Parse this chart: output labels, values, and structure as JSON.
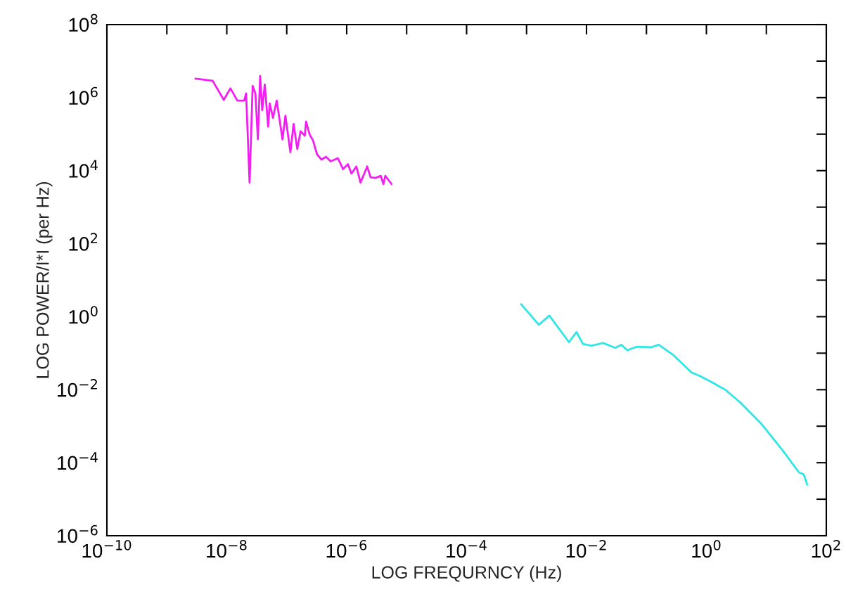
{
  "chart_data": {
    "type": "line",
    "xlabel": "LOG FREQURNCY (Hz)",
    "ylabel": "LOG POWER/I*I (per Hz)",
    "log": "xy",
    "grid": false,
    "legend": false,
    "marker": "none",
    "line_style": "solid",
    "xlim": [
      1e-10,
      100
    ],
    "ylim": [
      1e-06,
      100000000.0
    ],
    "xticks": [
      {
        "value": 1e-10,
        "label": "10$^{−10}$"
      },
      {
        "value": 1e-09,
        "label": null
      },
      {
        "value": 1e-08,
        "label": "10$^{−8}$"
      },
      {
        "value": 1e-07,
        "label": null
      },
      {
        "value": 1e-06,
        "label": "10$^{−6}$"
      },
      {
        "value": 1e-05,
        "label": null
      },
      {
        "value": 0.0001,
        "label": "10$^{−4}$"
      },
      {
        "value": 0.001,
        "label": null
      },
      {
        "value": 0.01,
        "label": "10$^{−2}$"
      },
      {
        "value": 0.1,
        "label": null
      },
      {
        "value": 1,
        "label": "10$^{0}$"
      },
      {
        "value": 10,
        "label": null
      },
      {
        "value": 100,
        "label": "10$^{2}$"
      }
    ],
    "yticks": [
      {
        "value": 1e-06,
        "label": "10$^{−6}$"
      },
      {
        "value": 1e-05,
        "label": null
      },
      {
        "value": 0.0001,
        "label": "10$^{−4}$"
      },
      {
        "value": 0.001,
        "label": null
      },
      {
        "value": 0.01,
        "label": "10$^{−2}$"
      },
      {
        "value": 0.1,
        "label": null
      },
      {
        "value": 1,
        "label": "10$^{0}$"
      },
      {
        "value": 10,
        "label": null
      },
      {
        "value": 100,
        "label": "10$^{2}$"
      },
      {
        "value": 1000,
        "label": null
      },
      {
        "value": 10000.0,
        "label": "10$^{4}$"
      },
      {
        "value": 100000.0,
        "label": null
      },
      {
        "value": 1000000.0,
        "label": "10$^{6}$"
      },
      {
        "value": 10000000.0,
        "label": null
      },
      {
        "value": 100000000.0,
        "label": "10$^{8}$"
      }
    ],
    "series": [
      {
        "color": "#f21ef2",
        "x": [
          3e-09,
          5.8e-09,
          8.9e-09,
          1.15e-08,
          1.5e-08,
          1.95e-08,
          2.1e-08,
          2.4e-08,
          2.7e-08,
          3e-08,
          3.3e-08,
          3.6e-08,
          3.9e-08,
          4.3e-08,
          4.9e-08,
          5.2e-08,
          5.9e-08,
          6.8e-08,
          8.5e-08,
          9.5e-08,
          1.15e-07,
          1.3e-07,
          1.5e-07,
          1.7e-07,
          2e-07,
          2.1e-07,
          2.4e-07,
          2.75e-07,
          3.2e-07,
          3.8e-07,
          4.5e-07,
          5.4e-07,
          7.1e-07,
          8.7e-07,
          1.05e-06,
          1.2e-06,
          1.45e-06,
          1.7e-06,
          2.2e-06,
          2.5e-06,
          3e-06,
          3.7e-06,
          4.1e-06,
          4.4e-06,
          5.6e-06
        ],
        "values": [
          3300000.0,
          2900000.0,
          870000.0,
          1800000.0,
          830000.0,
          830000.0,
          1300000.0,
          4700.0,
          2100000.0,
          1300000.0,
          72000.0,
          3900000.0,
          450000.0,
          2300000.0,
          160000.0,
          690000.0,
          280000.0,
          830000.0,
          72000.0,
          320000.0,
          32000.0,
          190000.0,
          39000.0,
          120000.0,
          91000.0,
          220000.0,
          100000.0,
          66000.0,
          28000.0,
          20000.0,
          24000.0,
          18000.0,
          22000.0,
          11000.0,
          15000.0,
          8300.0,
          13000.0,
          4700.0,
          13000.0,
          6600.0,
          6300.0,
          7200.0,
          4300.0,
          7200.0,
          4300.0
        ]
      },
      {
        "color": "#2ee6e6",
        "x": [
          0.00081,
          0.0016,
          0.0024,
          0.0051,
          0.0068,
          0.0087,
          0.012,
          0.019,
          0.03,
          0.038,
          0.048,
          0.068,
          0.12,
          0.16,
          0.28,
          0.56,
          0.81,
          1.15,
          2.1,
          3.7,
          8.3,
          18.6,
          35,
          42,
          48
        ],
        "values": [
          2.2,
          0.6,
          1.07,
          0.2,
          0.38,
          0.18,
          0.16,
          0.19,
          0.14,
          0.17,
          0.12,
          0.15,
          0.145,
          0.17,
          0.089,
          0.03,
          0.023,
          0.017,
          0.0098,
          0.0044,
          0.00115,
          0.00022,
          5.4e-05,
          4.8e-05,
          2.5e-05
        ]
      }
    ]
  }
}
